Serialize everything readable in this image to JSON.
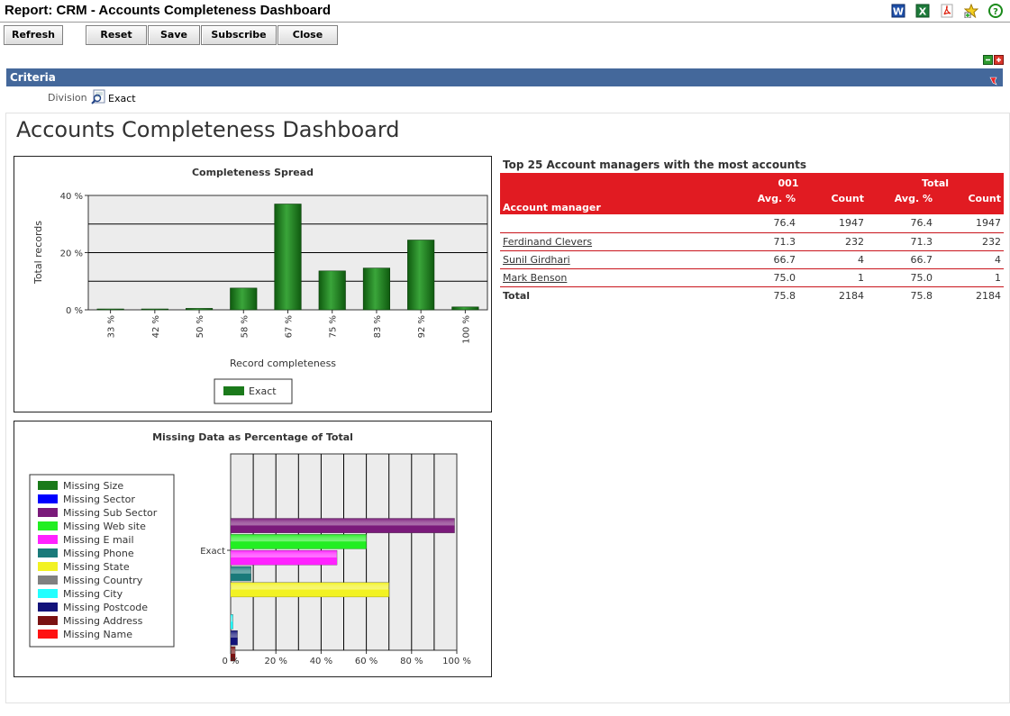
{
  "header": {
    "title": "Report: CRM - Accounts Completeness Dashboard",
    "icons": [
      "word-export-icon",
      "excel-export-icon",
      "pdf-export-icon",
      "add-favorite-icon",
      "help-icon"
    ]
  },
  "toolbar": {
    "refresh": "Refresh",
    "reset": "Reset",
    "save": "Save",
    "subscribe": "Subscribe",
    "close": "Close"
  },
  "criteria": {
    "label": "Criteria",
    "division_label": "Division",
    "division_value": "Exact"
  },
  "dashboard_title": "Accounts Completeness Dashboard",
  "chart_data": [
    {
      "type": "bar",
      "title": "Completeness Spread",
      "xlabel": "Record completeness",
      "ylabel": "Total records",
      "categories": [
        "33 %",
        "42 %",
        "50 %",
        "58 %",
        "67 %",
        "75 %",
        "83 %",
        "92 %",
        "100 %"
      ],
      "series": [
        {
          "name": "Exact",
          "values": [
            0.2,
            0.2,
            0.5,
            7.6,
            37.0,
            13.6,
            14.6,
            24.4,
            1.0
          ],
          "color": "#1b7a1b"
        }
      ],
      "ylim": [
        0,
        40
      ],
      "yticks": [
        0,
        20,
        40
      ],
      "ytick_labels": [
        "0 %",
        "20 %",
        "40 %"
      ],
      "grid": true,
      "legend": "bottom"
    },
    {
      "type": "bar",
      "orientation": "horizontal",
      "title": "Missing Data as Percentage of Total",
      "category": "Exact",
      "xlim": [
        0,
        100
      ],
      "xticks": [
        "0 %",
        "20 %",
        "40 %",
        "60 %",
        "80 %",
        "100 %"
      ],
      "series": [
        {
          "name": "Missing Size",
          "value": 0,
          "color": "#1a7a1a"
        },
        {
          "name": "Missing Sector",
          "value": 0,
          "color": "#0000ff"
        },
        {
          "name": "Missing Sub Sector",
          "value": 99,
          "color": "#7a1a7a"
        },
        {
          "name": "Missing Web site",
          "value": 60,
          "color": "#22ee22"
        },
        {
          "name": "Missing E mail",
          "value": 47,
          "color": "#ff22ff"
        },
        {
          "name": "Missing Phone",
          "value": 9,
          "color": "#1a7a7a"
        },
        {
          "name": "Missing State",
          "value": 70,
          "color": "#f2f222"
        },
        {
          "name": "Missing Country",
          "value": 0,
          "color": "#808080"
        },
        {
          "name": "Missing City",
          "value": 1,
          "color": "#22ffff"
        },
        {
          "name": "Missing Postcode",
          "value": 3,
          "color": "#12127a"
        },
        {
          "name": "Missing Address",
          "value": 2,
          "color": "#7a1212"
        },
        {
          "name": "Missing Name",
          "value": 0,
          "color": "#ff1212"
        }
      ],
      "grid": true,
      "legend": "left"
    }
  ],
  "managers_table": {
    "title": "Top 25 Account managers with the most accounts",
    "group_headers": [
      "001",
      "Total"
    ],
    "columns": [
      "Account manager",
      "Avg. %",
      "Count",
      "Avg. %",
      "Count"
    ],
    "rows": [
      {
        "name": "",
        "link": false,
        "cells": [
          "76.4",
          "1947",
          "76.4",
          "1947"
        ]
      },
      {
        "name": "Ferdinand Clevers",
        "link": true,
        "cells": [
          "71.3",
          "232",
          "71.3",
          "232"
        ]
      },
      {
        "name": "Sunil Girdhari",
        "link": true,
        "cells": [
          "66.7",
          "4",
          "66.7",
          "4"
        ]
      },
      {
        "name": "Mark Benson",
        "link": true,
        "cells": [
          "75.0",
          "1",
          "75.0",
          "1"
        ]
      }
    ],
    "total": {
      "name": "Total",
      "cells": [
        "75.8",
        "2184",
        "75.8",
        "2184"
      ]
    }
  }
}
